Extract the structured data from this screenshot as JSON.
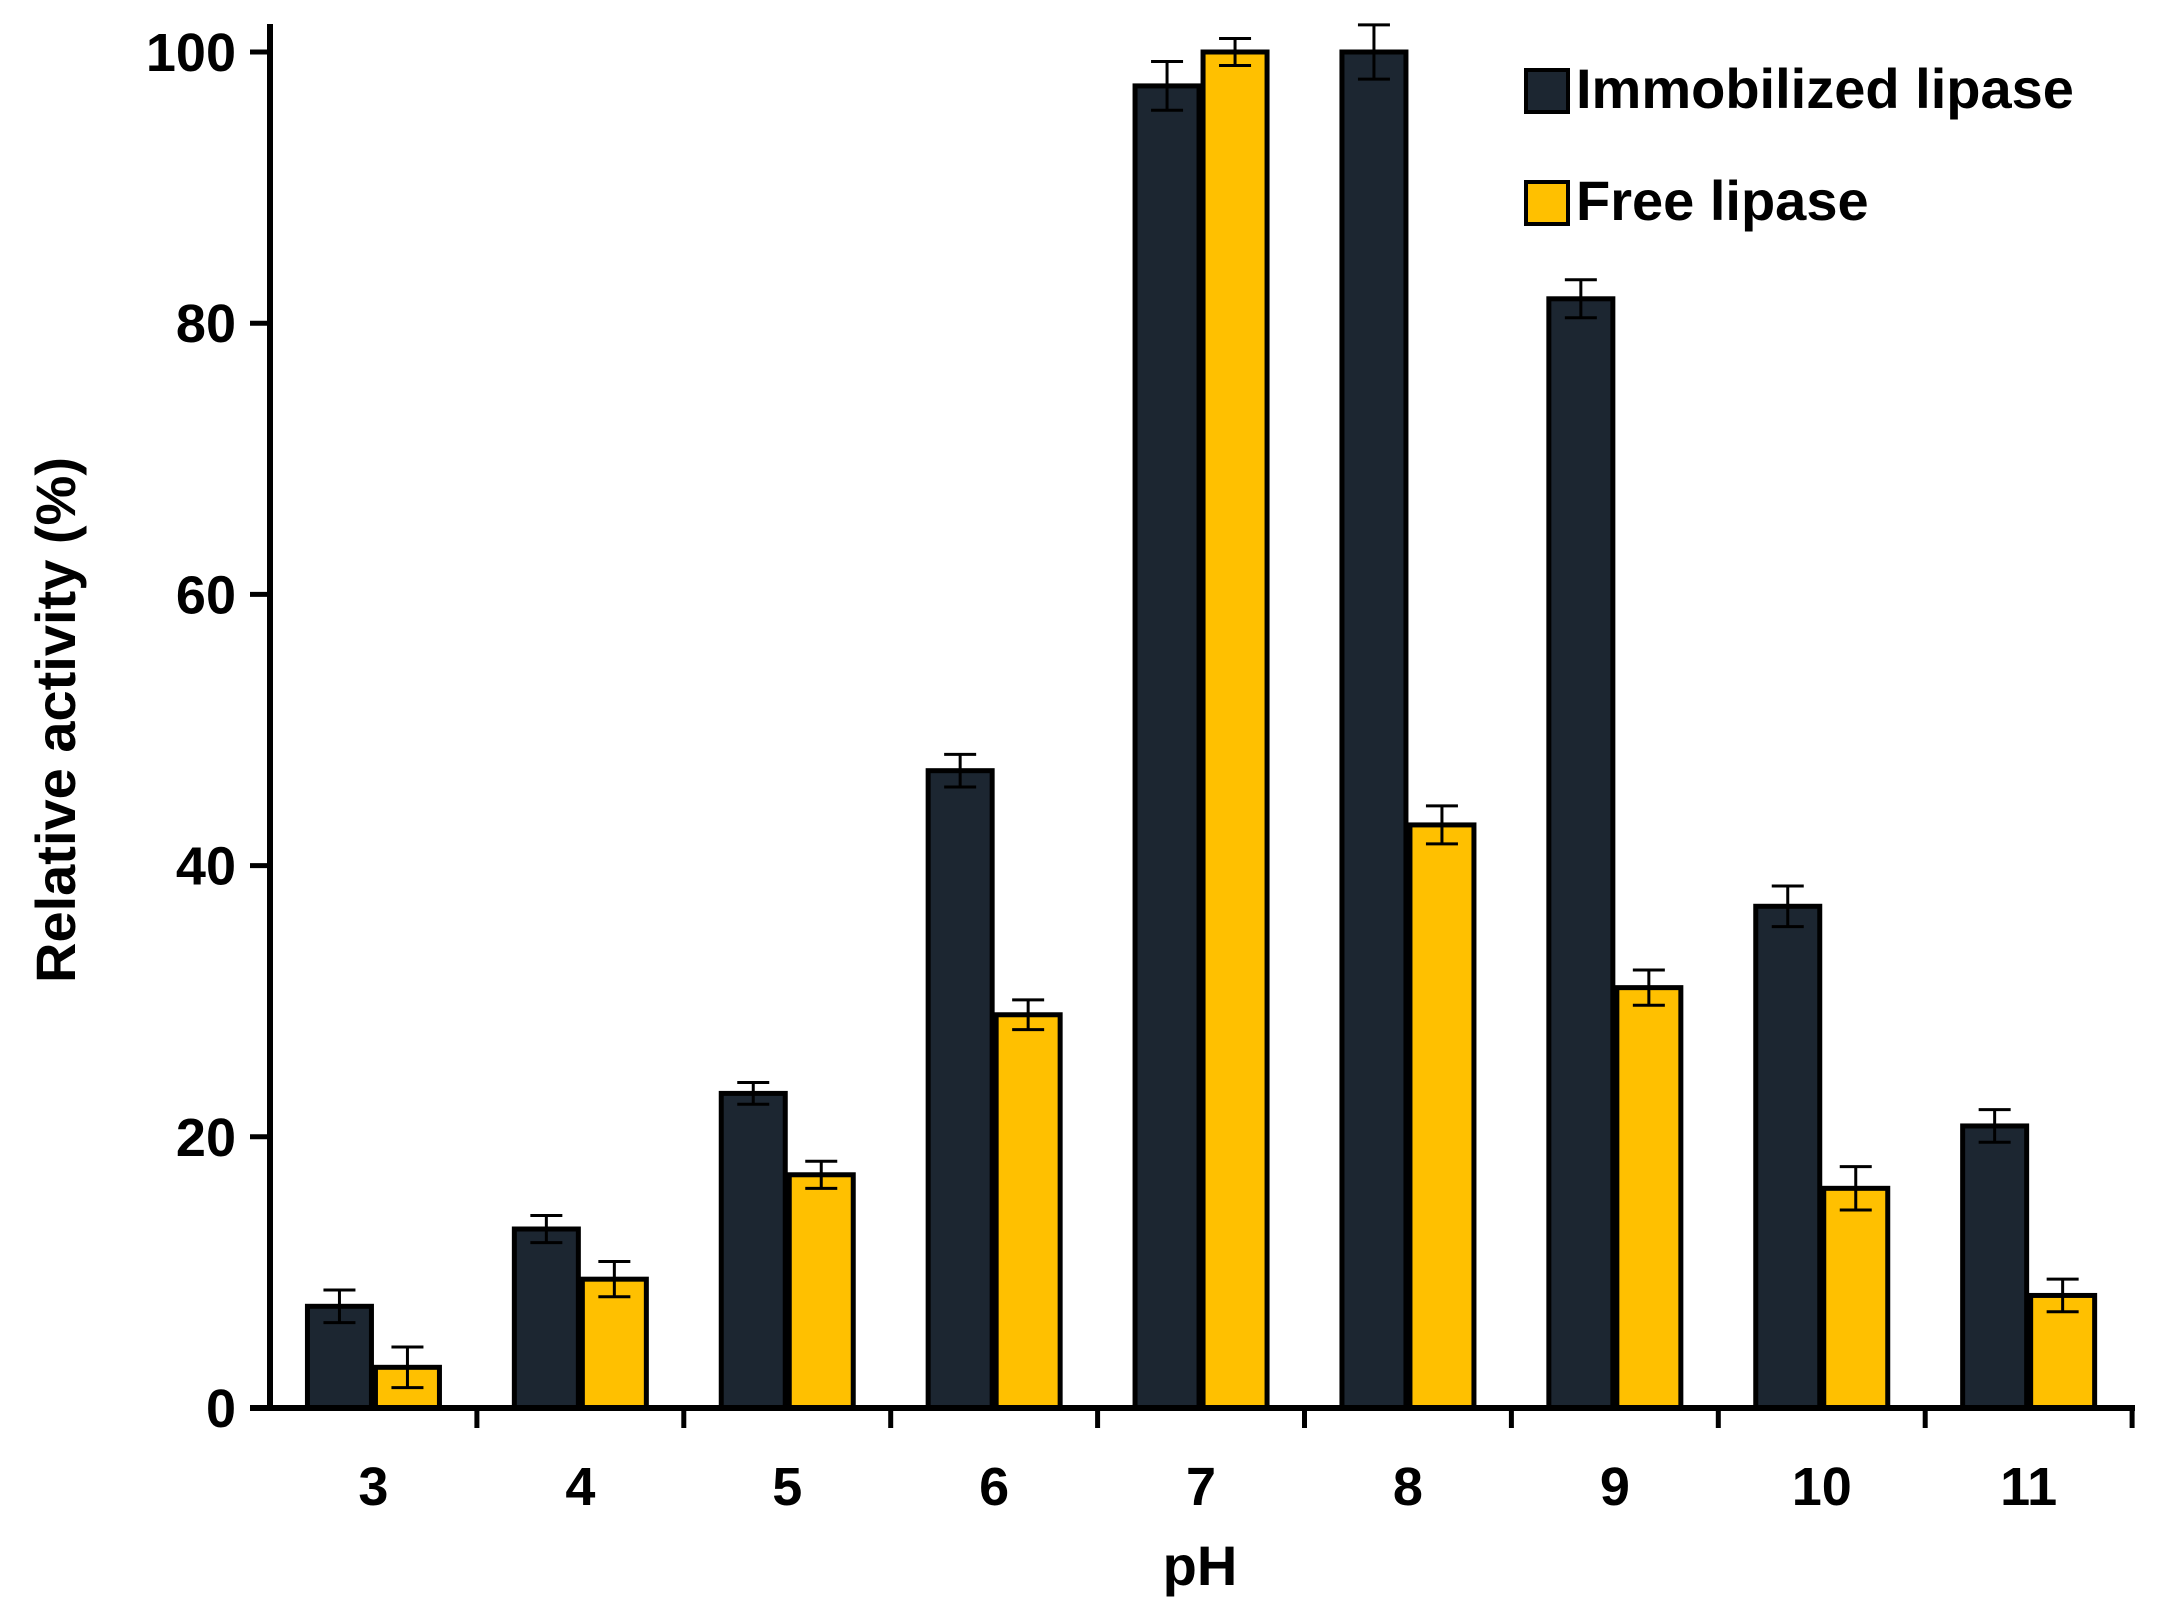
{
  "chart_data": {
    "type": "bar",
    "title": "",
    "xlabel": "pH",
    "ylabel": "Relative activity (%)",
    "ylim": [
      0,
      100
    ],
    "yticks": [
      0,
      20,
      40,
      60,
      80,
      100
    ],
    "grid": false,
    "legend_position": "top-right",
    "categories": [
      "3",
      "4",
      "5",
      "6",
      "7",
      "8",
      "9",
      "10",
      "11"
    ],
    "series": [
      {
        "name": "Immobilized lipase",
        "color": "#1c2631",
        "values": [
          7.5,
          13.2,
          23.2,
          47.0,
          97.5,
          100.0,
          81.8,
          37.0,
          20.8
        ],
        "errors": [
          1.2,
          1.0,
          0.8,
          1.2,
          1.8,
          2.0,
          1.4,
          1.5,
          1.2
        ]
      },
      {
        "name": "Free lipase",
        "color": "#ffc000",
        "values": [
          3.0,
          9.5,
          17.2,
          29.0,
          100.0,
          43.0,
          31.0,
          16.2,
          8.3
        ],
        "errors": [
          1.5,
          1.3,
          1.0,
          1.1,
          1.0,
          1.4,
          1.3,
          1.6,
          1.2
        ]
      }
    ]
  }
}
